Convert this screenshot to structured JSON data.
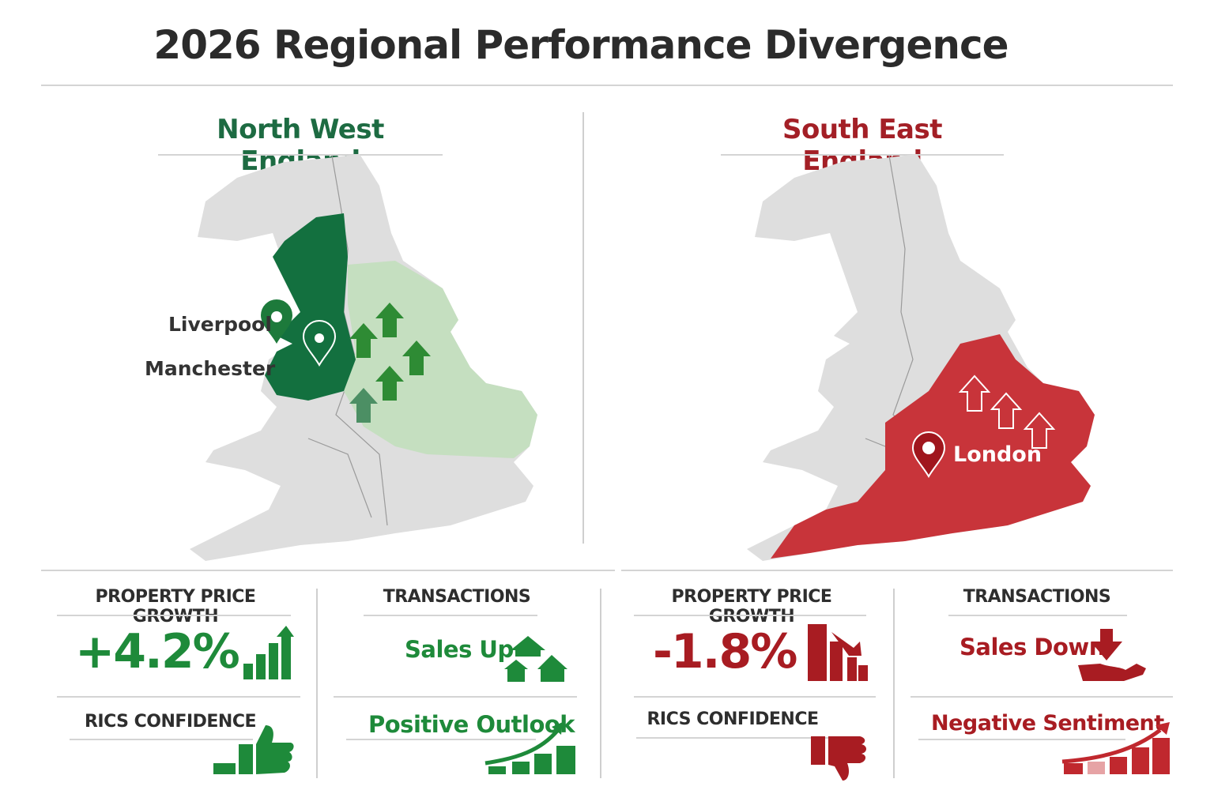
{
  "title": "2026 Regional Performance Divergence",
  "colors": {
    "positive": "#1e8a3a",
    "negative": "#a81c22",
    "map_base": "#dedede"
  },
  "north_west": {
    "region": "North West England",
    "cities": [
      "Liverpool",
      "Manchester"
    ],
    "map_icons": [
      "location-pin-icon",
      "up-arrow-icon"
    ],
    "price_growth": {
      "label": "PROPERTY PRICE GROWTH",
      "value": "+4.2%",
      "icon": "bar-chart-up-icon"
    },
    "transactions": {
      "label": "TRANSACTIONS",
      "value": "Sales Up",
      "icon": "houses-icon"
    },
    "rics": {
      "label": "RICS CONFIDENCE",
      "icon": "thumbs-up-icon"
    },
    "outlook": {
      "value": "Positive Outlook",
      "icon": "growth-chart-icon"
    }
  },
  "south_east": {
    "region": "South East England",
    "cities": [
      "London"
    ],
    "map_icons": [
      "location-pin-icon",
      "up-arrow-outline-icon"
    ],
    "price_growth": {
      "label": "PROPERTY PRICE GROWTH",
      "value": "-1.8%",
      "icon": "bar-chart-down-icon"
    },
    "transactions": {
      "label": "TRANSACTIONS",
      "value": "Sales Down",
      "icon": "hand-down-arrow-icon"
    },
    "rics": {
      "label": "RICS CONFIDENCE",
      "icon": "thumbs-down-icon"
    },
    "sentiment": {
      "value": "Negative Sentiment",
      "icon": "rising-chart-icon"
    }
  }
}
